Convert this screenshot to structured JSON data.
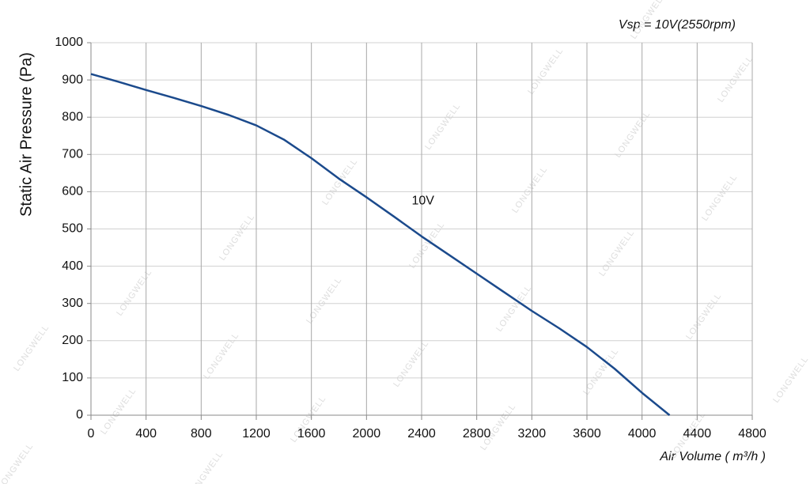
{
  "chart_data": {
    "type": "line",
    "subtitle": "Vsp = 10V(2550rpm)",
    "x_label": "Air Volume ( m³/h )",
    "y_label": "Static Air Pressure  (Pa)",
    "x": [
      0,
      200,
      400,
      600,
      800,
      1000,
      1200,
      1400,
      1600,
      1800,
      2000,
      2200,
      2400,
      2600,
      2800,
      3000,
      3200,
      3400,
      3600,
      3800,
      4000,
      4200
    ],
    "series": [
      {
        "name": "10V",
        "color": "#1b4a8c",
        "values": [
          916,
          895,
          873,
          852,
          830,
          806,
          778,
          740,
          690,
          635,
          585,
          533,
          480,
          430,
          380,
          330,
          280,
          233,
          183,
          125,
          60,
          0
        ]
      }
    ],
    "annotations": [
      {
        "text": "10V",
        "x": 2410,
        "y": 575
      }
    ],
    "xlim": [
      0,
      4800
    ],
    "xticks": [
      0,
      400,
      800,
      1200,
      1600,
      2000,
      2400,
      2800,
      3200,
      3600,
      4000,
      4400,
      4800
    ],
    "ylim": [
      0,
      1000
    ],
    "yticks": [
      0,
      100,
      200,
      300,
      400,
      500,
      600,
      700,
      800,
      900,
      1000
    ],
    "grid": true,
    "watermark": "LONGWELL"
  }
}
